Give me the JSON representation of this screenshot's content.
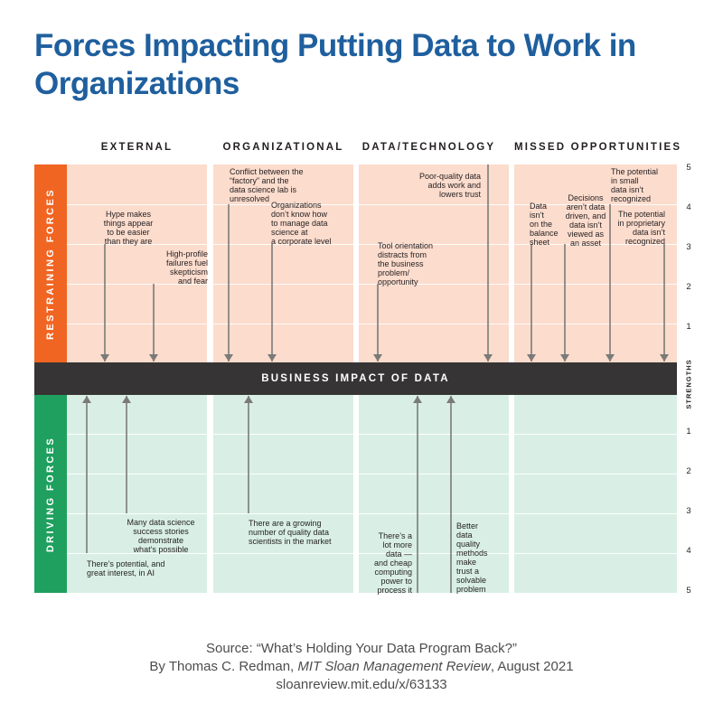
{
  "title": "Forces Impacting Putting Data to Work in Organizations",
  "columns": [
    "EXTERNAL",
    "ORGANIZATIONAL",
    "DATA/TECHNOLOGY",
    "MISSED OPPORTUNITIES"
  ],
  "restraining_label": "RESTRAINING FORCES",
  "driving_label": "DRIVING FORCES",
  "center_label": "BUSINESS IMPACT OF DATA",
  "scale_label": "STRENGTHS",
  "ticks_top": [
    "5",
    "4",
    "3",
    "2",
    "1"
  ],
  "ticks_bottom": [
    "1",
    "2",
    "3",
    "4",
    "5"
  ],
  "restraining": [
    {
      "column": "EXTERNAL",
      "text": "Hype makes\nthings appear\nto be easier\nthan they are",
      "strength": 4
    },
    {
      "column": "EXTERNAL",
      "text": "High-profile\nfailures fuel\nskepticism\nand fear",
      "strength": 3
    },
    {
      "column": "ORGANIZATIONAL",
      "text": "Conflict between the\n“factory” and the\ndata science lab is\nunresolved",
      "strength": 4
    },
    {
      "column": "ORGANIZATIONAL",
      "text": "Organizations\ndon’t know how\nto manage data\nscience at\na corporate level",
      "strength": 4
    },
    {
      "column": "DATA/TECHNOLOGY",
      "text": "Tool orientation\ndistracts from\nthe business\nproblem/\nopportunity",
      "strength": 2
    },
    {
      "column": "DATA/TECHNOLOGY",
      "text": "Poor-quality data\nadds work and\nlowers trust",
      "strength": 5
    },
    {
      "column": "MISSED OPPORTUNITIES",
      "text": "Data\nisn’t\non the\nbalance\nsheet",
      "strength": 3
    },
    {
      "column": "MISSED OPPORTUNITIES",
      "text": "Decisions\naren’t data\ndriven, and\ndata isn’t\nviewed as\nan asset",
      "strength": 3
    },
    {
      "column": "MISSED OPPORTUNITIES",
      "text": "The potential\nin small\ndata isn’t\nrecognized",
      "strength": 4
    },
    {
      "column": "MISSED OPPORTUNITIES",
      "text": "The potential\nin proprietary\ndata isn’t\nrecognized",
      "strength": 3
    }
  ],
  "driving": [
    {
      "column": "EXTERNAL",
      "text": "There’s potential, and\ngreat interest, in AI",
      "strength": 4
    },
    {
      "column": "EXTERNAL",
      "text": "Many data science\nsuccess stories\ndemonstrate\nwhat’s possible",
      "strength": 3
    },
    {
      "column": "ORGANIZATIONAL",
      "text": "There are a growing\nnumber of quality data\nscientists in the market",
      "strength": 3
    },
    {
      "column": "DATA/TECHNOLOGY",
      "text": "There’s a\nlot more\ndata —\nand cheap\ncomputing\npower to\nprocess it",
      "strength": 5
    },
    {
      "column": "DATA/TECHNOLOGY",
      "text": "Better\ndata\nquality\nmethods\nmake\ntrust a\nsolvable\nproblem",
      "strength": 5
    }
  ],
  "source": {
    "line1": "Source: “What’s Holding Your Data Program Back?”",
    "line2_prefix": "By Thomas C. Redman, ",
    "line2_pub": "MIT Sloan Management Review",
    "line2_suffix": ", August 2021",
    "line3": "sloanreview.mit.edu/x/63133"
  },
  "colors": {
    "title": "#1f5f9e",
    "restraining_band": "#f16522",
    "driving_band": "#1fa05f",
    "restraining_panel": "#fcdccd",
    "driving_panel": "#d9efe5",
    "center_bar": "#373435",
    "arrow": "#7a7a7a"
  }
}
